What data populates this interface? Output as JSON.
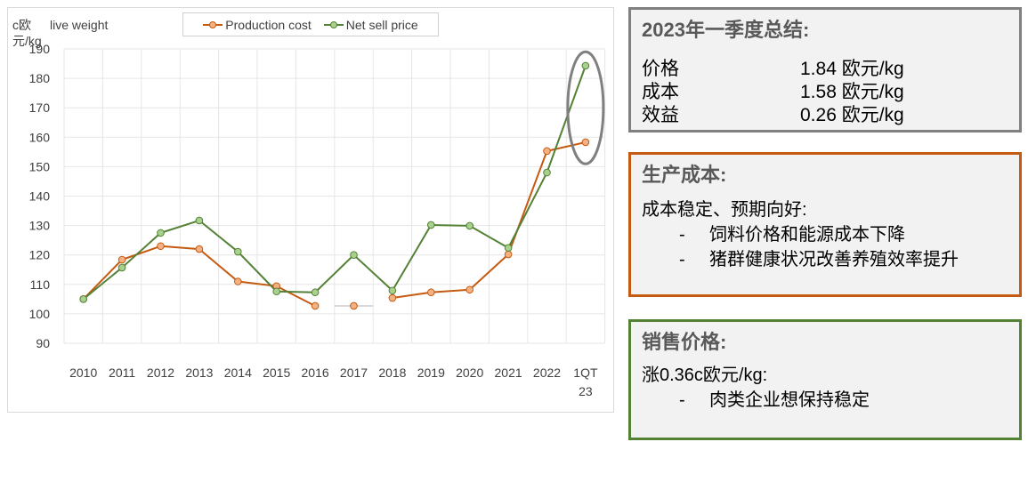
{
  "chart_data": {
    "type": "line",
    "ylabel": "c欧\n元/kg",
    "subtitle": "live weight",
    "categories": [
      "2010",
      "2011",
      "2012",
      "2013",
      "2014",
      "2015",
      "2016",
      "2017",
      "2018",
      "2019",
      "2020",
      "2021",
      "2022",
      "1QT 23"
    ],
    "category_lines": [
      [
        "2010"
      ],
      [
        "2011"
      ],
      [
        "2012"
      ],
      [
        "2013"
      ],
      [
        "2014"
      ],
      [
        "2015"
      ],
      [
        "2016"
      ],
      [
        "2017"
      ],
      [
        "2018"
      ],
      [
        "2019"
      ],
      [
        "2020"
      ],
      [
        "2021"
      ],
      [
        "2022"
      ],
      [
        "1QT",
        "23"
      ]
    ],
    "ylim": [
      90,
      190
    ],
    "yticks": [
      190,
      180,
      170,
      160,
      150,
      140,
      130,
      120,
      110,
      100,
      90
    ],
    "grid": true,
    "legend_placement": "top",
    "series": [
      {
        "name": "Production cost",
        "color": "#c55a11",
        "marker_fill": "#f4b183",
        "values": [
          105,
          118.4,
          123,
          122,
          111,
          109.4,
          102.7,
          102.7,
          105.4,
          107.3,
          108.2,
          120.2,
          155.3,
          158.3
        ],
        "disconnected_points": [
          "2017"
        ]
      },
      {
        "name": "Net sell price",
        "color": "#538135",
        "marker_fill": "#a9d18e",
        "values": [
          105,
          115.7,
          127.5,
          131.7,
          121.1,
          107.6,
          107.3,
          120,
          107.9,
          130.2,
          129.9,
          122.4,
          148,
          184.3
        ],
        "disconnected_points": []
      }
    ],
    "annotation": {
      "type": "ellipse",
      "category": "1QT 23",
      "color": "#808080"
    }
  },
  "summary": {
    "title": "2023年一季度总结:",
    "rows": [
      {
        "label": "价格",
        "value": "1.84 欧元/kg"
      },
      {
        "label": "成本",
        "value": "1.58 欧元/kg"
      },
      {
        "label": "效益",
        "value": "0.26 欧元/kg"
      }
    ],
    "border_color": "#808080"
  },
  "cost": {
    "title": "生产成本:",
    "intro": "成本稳定、预期向好:",
    "bullets": [
      "饲料价格和能源成本下降",
      "猪群健康状况改善养殖效率提升"
    ],
    "border_color": "#c55a11"
  },
  "price": {
    "title": "销售价格:",
    "intro": "涨0.36c欧元/kg:",
    "bullets": [
      "肉类企业想保持稳定"
    ],
    "border_color": "#548235"
  },
  "bullet_mark": "-"
}
